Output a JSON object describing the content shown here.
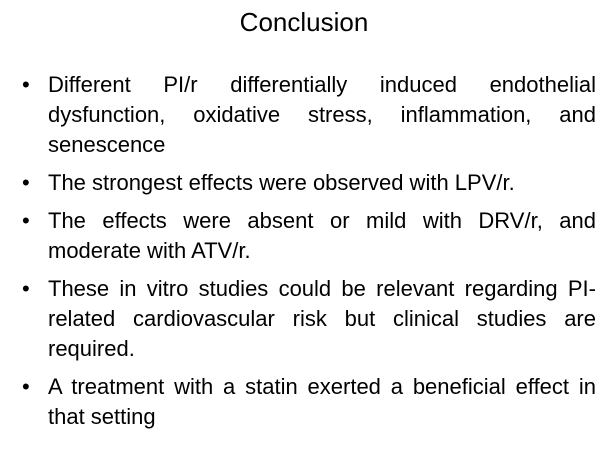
{
  "title": "Conclusion",
  "bullets": [
    "Different PI/r differentially induced endothelial dysfunction, oxidative stress, inflammation, and senescence",
    "The strongest effects were observed with LPV/r.",
    "The effects were absent or mild with DRV/r, and moderate with ATV/r.",
    "These in vitro studies could be relevant regarding PI-related cardiovascular risk but clinical studies are required.",
    "A treatment with a statin exerted a beneficial effect in that setting"
  ]
}
